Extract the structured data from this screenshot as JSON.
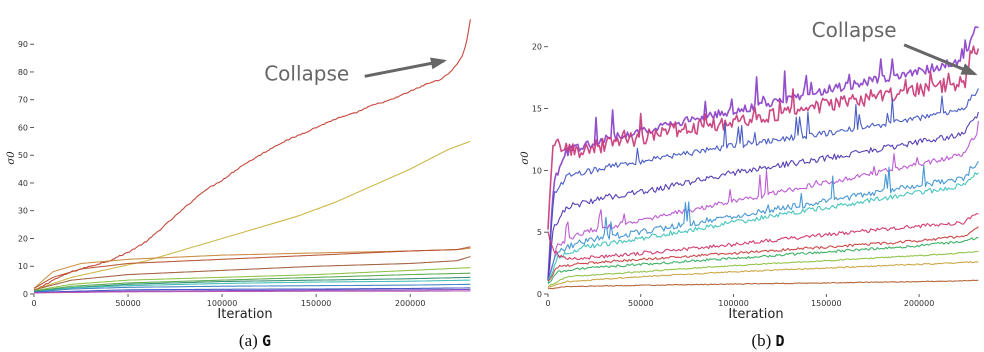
{
  "chart_data": [
    {
      "type": "line",
      "panel": "left",
      "xlabel": "Iteration",
      "ylabel": "σ0",
      "xlim": [
        0,
        235000
      ],
      "ylim": [
        0,
        98
      ],
      "xticks": [
        0,
        50000,
        100000,
        150000,
        200000
      ],
      "yticks": [
        0,
        10,
        20,
        30,
        40,
        50,
        60,
        70,
        80,
        90
      ],
      "caption_prefix": "(a)",
      "caption_model": "G",
      "annotation": {
        "text": "Collapse",
        "x": 145000,
        "y": 77,
        "arrow_to_x": 218000,
        "arrow_to_y": 84
      },
      "series": [
        {
          "color": "#c0392b",
          "noise": 0.25,
          "x": [
            0,
            10000,
            20000,
            30000,
            40000,
            50000,
            60000,
            70000,
            80000,
            90000,
            100000,
            110000,
            120000,
            130000,
            140000,
            150000,
            160000,
            170000,
            180000,
            190000,
            200000,
            210000,
            215000,
            220000,
            225000,
            228000,
            230000,
            232000
          ],
          "y": [
            1,
            5,
            8,
            10,
            12,
            15,
            19,
            25,
            31,
            37,
            41,
            46,
            50,
            54,
            57,
            60,
            63,
            65,
            68,
            70,
            73,
            76,
            77,
            79,
            83,
            86,
            91,
            99
          ]
        },
        {
          "color": "#c8b23a",
          "noise": 0,
          "x": [
            0,
            20000,
            40000,
            60000,
            80000,
            100000,
            120000,
            140000,
            160000,
            180000,
            200000,
            220000,
            232000
          ],
          "y": [
            1.5,
            6,
            9,
            12,
            16,
            20,
            24,
            28,
            33,
            39,
            45,
            52,
            55
          ]
        },
        {
          "color": "#c9883a",
          "noise": 0,
          "x": [
            0,
            10000,
            25000,
            50000,
            100000,
            150000,
            200000,
            225000,
            232000
          ],
          "y": [
            2,
            8,
            11,
            12.5,
            14,
            14.8,
            15.5,
            16,
            16.5
          ]
        },
        {
          "color": "#b5502e",
          "noise": 0,
          "x": [
            0,
            10000,
            25000,
            50000,
            100000,
            150000,
            200000,
            225000,
            232000
          ],
          "y": [
            2,
            6,
            9,
            11,
            12.5,
            14,
            15.5,
            16,
            17
          ]
        },
        {
          "color": "#a05a3a",
          "noise": 0,
          "x": [
            0,
            20000,
            50000,
            100000,
            150000,
            200000,
            225000,
            232000
          ],
          "y": [
            1.5,
            5,
            7,
            8.5,
            10,
            11,
            12,
            13.5
          ]
        },
        {
          "color": "#8bbf3f",
          "noise": 0,
          "x": [
            0,
            20000,
            50000,
            100000,
            150000,
            200000,
            232000
          ],
          "y": [
            1.2,
            3.5,
            5,
            6,
            7,
            8.5,
            9.5
          ]
        },
        {
          "color": "#52a64a",
          "noise": 0,
          "x": [
            0,
            20000,
            50000,
            100000,
            150000,
            200000,
            232000
          ],
          "y": [
            1,
            2.8,
            4,
            5,
            6,
            7,
            7.5
          ]
        },
        {
          "color": "#2e8b6e",
          "noise": 0,
          "x": [
            0,
            20000,
            50000,
            100000,
            150000,
            200000,
            232000
          ],
          "y": [
            1,
            2.3,
            3.5,
            4.5,
            5,
            5.5,
            6
          ]
        },
        {
          "color": "#3cbcb4",
          "noise": 0,
          "x": [
            0,
            20000,
            50000,
            100000,
            150000,
            200000,
            232000
          ],
          "y": [
            0.8,
            2.2,
            3,
            3.8,
            4.3,
            4.6,
            5
          ]
        },
        {
          "color": "#3a7fc0",
          "noise": 0,
          "x": [
            0,
            20000,
            50000,
            100000,
            150000,
            200000,
            232000
          ],
          "y": [
            0.7,
            1.8,
            2.4,
            2.8,
            3,
            3.2,
            3.5
          ]
        },
        {
          "color": "#3a4fc0",
          "noise": 0,
          "x": [
            0,
            50000,
            100000,
            150000,
            200000,
            232000
          ],
          "y": [
            0.6,
            1.5,
            1.7,
            1.8,
            2,
            2.2
          ]
        },
        {
          "color": "#7b3fc0",
          "noise": 0,
          "x": [
            0,
            50000,
            100000,
            150000,
            200000,
            232000
          ],
          "y": [
            0.5,
            1,
            1.2,
            1.4,
            1.5,
            1.6
          ]
        },
        {
          "color": "#b84fb0",
          "noise": 0,
          "x": [
            0,
            50000,
            100000,
            150000,
            200000,
            232000
          ],
          "y": [
            0.4,
            0.8,
            0.9,
            1,
            1,
            1.1
          ]
        }
      ]
    },
    {
      "type": "line",
      "panel": "right",
      "xlabel": "Iteration",
      "ylabel": "σ0",
      "xlim": [
        0,
        235000
      ],
      "ylim": [
        0,
        22
      ],
      "xticks": [
        0,
        50000,
        100000,
        150000,
        200000
      ],
      "yticks": [
        0,
        5,
        10,
        15,
        20
      ],
      "caption_prefix": "(b)",
      "caption_model": "D",
      "annotation": {
        "text": "Collapse",
        "x": 165000,
        "y": 20.8,
        "arrow_to_x": 230000,
        "arrow_to_y": 17.8
      },
      "series": [
        {
          "color": "#8a3fc8",
          "noise": 0.35,
          "spikes": true,
          "x": [
            0,
            3000,
            10000,
            30000,
            60000,
            100000,
            150000,
            200000,
            225000,
            228000,
            232000
          ],
          "y": [
            1,
            9,
            11.5,
            12.5,
            13.5,
            14.8,
            16.5,
            18,
            19,
            21,
            21.5
          ]
        },
        {
          "color": "#c83a7a",
          "noise": 0.6,
          "spikes": true,
          "x": [
            0,
            3000,
            8000,
            15000,
            30000,
            60000,
            100000,
            150000,
            200000,
            225000,
            228000,
            232000
          ],
          "y": [
            5,
            12.5,
            11.8,
            11.5,
            12,
            13,
            14,
            15.3,
            16.5,
            17.2,
            19.5,
            20
          ]
        },
        {
          "color": "#3a4fc0",
          "noise": 0.25,
          "spikes": true,
          "x": [
            0,
            3000,
            10000,
            30000,
            60000,
            100000,
            150000,
            200000,
            225000,
            228000,
            232000
          ],
          "y": [
            1,
            8,
            9.5,
            10.2,
            11,
            12,
            13,
            14.2,
            15,
            16,
            16.5
          ]
        },
        {
          "color": "#4a2fb0",
          "noise": 0.25,
          "spikes": false,
          "x": [
            0,
            3000,
            10000,
            30000,
            60000,
            100000,
            150000,
            200000,
            225000,
            228000,
            232000
          ],
          "y": [
            1,
            5.5,
            7,
            7.8,
            8.5,
            9.8,
            11,
            12.3,
            13,
            14,
            14.5
          ]
        },
        {
          "color": "#b84fd0",
          "noise": 0.2,
          "spikes": true,
          "x": [
            0,
            5000,
            20000,
            50000,
            100000,
            150000,
            200000,
            225000,
            228000,
            232000
          ],
          "y": [
            1,
            4,
            5,
            6,
            7.5,
            9,
            10.5,
            11.3,
            12.5,
            12.8
          ]
        },
        {
          "color": "#3a8fd0",
          "noise": 0.25,
          "spikes": true,
          "x": [
            0,
            5000,
            20000,
            50000,
            100000,
            150000,
            200000,
            225000,
            228000,
            232000
          ],
          "y": [
            1,
            3.5,
            4.3,
            5,
            6.3,
            7.5,
            8.8,
            9.4,
            10.2,
            10.5
          ]
        },
        {
          "color": "#38c0b8",
          "noise": 0.2,
          "spikes": false,
          "x": [
            0,
            5000,
            20000,
            50000,
            100000,
            150000,
            200000,
            225000,
            228000,
            232000
          ],
          "y": [
            0.8,
            3,
            3.8,
            4.5,
            5.8,
            7,
            8.2,
            8.8,
            9.5,
            9.8
          ]
        },
        {
          "color": "#d02f5f",
          "noise": 0.15,
          "spikes": false,
          "x": [
            0,
            3000,
            8000,
            20000,
            50000,
            100000,
            150000,
            200000,
            225000,
            228000,
            232000
          ],
          "y": [
            5,
            3.5,
            2.9,
            2.9,
            3.3,
            4,
            4.8,
            5.5,
            5.8,
            6.2,
            6.5
          ]
        },
        {
          "color": "#c83a3a",
          "noise": 0.1,
          "spikes": false,
          "x": [
            0,
            5000,
            20000,
            50000,
            100000,
            150000,
            200000,
            225000,
            232000
          ],
          "y": [
            1,
            2.2,
            2.5,
            2.8,
            3.3,
            3.8,
            4.3,
            4.7,
            5.5
          ]
        },
        {
          "color": "#2faa5a",
          "noise": 0.1,
          "spikes": false,
          "x": [
            0,
            5000,
            20000,
            50000,
            100000,
            150000,
            200000,
            225000,
            232000
          ],
          "y": [
            0.8,
            1.8,
            2.1,
            2.4,
            2.9,
            3.4,
            3.9,
            4.3,
            4.6
          ]
        },
        {
          "color": "#8bbf3f",
          "noise": 0.05,
          "spikes": false,
          "x": [
            0,
            10000,
            50000,
            100000,
            150000,
            200000,
            232000
          ],
          "y": [
            0.6,
            1.4,
            1.8,
            2.3,
            2.7,
            3.1,
            3.4
          ]
        },
        {
          "color": "#c8a23a",
          "noise": 0.05,
          "spikes": false,
          "x": [
            0,
            10000,
            50000,
            100000,
            150000,
            200000,
            232000
          ],
          "y": [
            0.5,
            1,
            1.4,
            1.8,
            2.1,
            2.4,
            2.6
          ]
        },
        {
          "color": "#b05a2a",
          "noise": 0.03,
          "spikes": false,
          "x": [
            0,
            10000,
            50000,
            100000,
            150000,
            200000,
            232000
          ],
          "y": [
            0.4,
            0.6,
            0.7,
            0.8,
            0.9,
            1,
            1.1
          ]
        }
      ]
    }
  ]
}
